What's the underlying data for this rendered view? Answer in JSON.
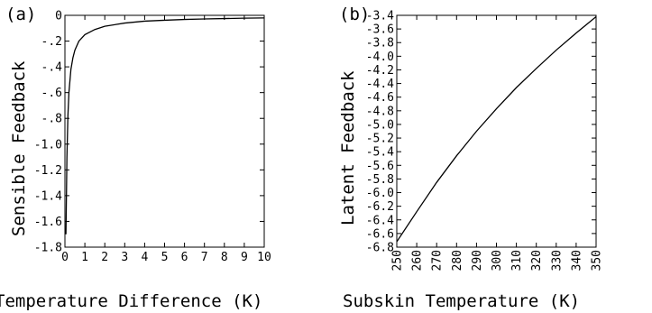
{
  "chart_data": [
    {
      "type": "line",
      "panel_label": "(a)",
      "xlabel": "Temperature Difference (K)",
      "ylabel": "Sensible Feedback",
      "xlim": [
        0,
        10
      ],
      "ylim": [
        -1.8,
        0
      ],
      "x_ticks": [
        "0",
        "1",
        "2",
        "3",
        "4",
        "5",
        "6",
        "7",
        "8",
        "9",
        "10"
      ],
      "y_ticks": [
        "0",
        "-.2",
        "-.4",
        "-.6",
        "-.8",
        "-1.0",
        "-1.2",
        "-1.4",
        "-1.6",
        "-1.8"
      ],
      "x_tick_values": [
        0,
        1,
        2,
        3,
        4,
        5,
        6,
        7,
        8,
        9,
        10
      ],
      "y_tick_values": [
        0,
        -0.2,
        -0.4,
        -0.6,
        -0.8,
        -1.0,
        -1.2,
        -1.4,
        -1.6,
        -1.8
      ],
      "series": [
        {
          "x": [
            0.05,
            0.08,
            0.1,
            0.15,
            0.2,
            0.3,
            0.4,
            0.5,
            0.7,
            1.0,
            1.5,
            2.0,
            3.0,
            4.0,
            5.0,
            6.0,
            7.0,
            8.0,
            9.0,
            10.0
          ],
          "y": [
            -1.7,
            -1.35,
            -1.1,
            -0.78,
            -0.6,
            -0.42,
            -0.33,
            -0.27,
            -0.2,
            -0.15,
            -0.11,
            -0.085,
            -0.06,
            -0.045,
            -0.038,
            -0.032,
            -0.028,
            -0.025,
            -0.022,
            -0.02
          ]
        }
      ]
    },
    {
      "type": "line",
      "panel_label": "(b)",
      "xlabel": "Subskin Temperature (K)",
      "ylabel": "Latent Feedback",
      "xlim": [
        250,
        350
      ],
      "ylim": [
        -6.8,
        -3.4
      ],
      "x_ticks": [
        "250",
        "260",
        "270",
        "280",
        "290",
        "300",
        "310",
        "320",
        "330",
        "340",
        "350"
      ],
      "y_ticks": [
        "-3.4",
        "-3.6",
        "-3.8",
        "-4.0",
        "-4.2",
        "-4.4",
        "-4.6",
        "-4.8",
        "-5.0",
        "-5.2",
        "-5.4",
        "-5.6",
        "-5.8",
        "-6.0",
        "-6.2",
        "-6.4",
        "-6.6",
        "-6.8"
      ],
      "x_tick_values": [
        250,
        260,
        270,
        280,
        290,
        300,
        310,
        320,
        330,
        340,
        350
      ],
      "y_tick_values": [
        -3.4,
        -3.6,
        -3.8,
        -4.0,
        -4.2,
        -4.4,
        -4.6,
        -4.8,
        -5.0,
        -5.2,
        -5.4,
        -5.6,
        -5.8,
        -6.0,
        -6.2,
        -6.4,
        -6.6,
        -6.8
      ],
      "series": [
        {
          "x": [
            250,
            260,
            270,
            280,
            290,
            300,
            310,
            320,
            330,
            340,
            350
          ],
          "y": [
            -6.72,
            -6.28,
            -5.85,
            -5.46,
            -5.1,
            -4.77,
            -4.46,
            -4.18,
            -3.91,
            -3.66,
            -3.42
          ]
        }
      ]
    }
  ]
}
